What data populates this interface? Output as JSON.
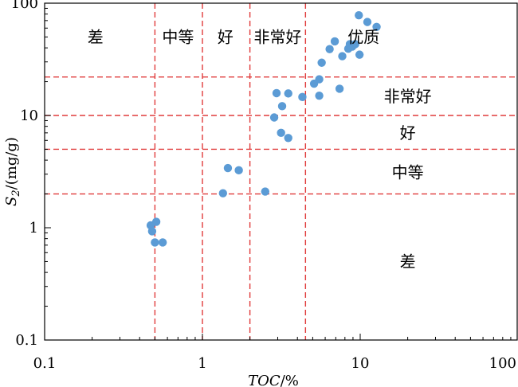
{
  "chart_data": {
    "type": "scatter",
    "title": "",
    "x_scale": "log",
    "y_scale": "log",
    "xlim": [
      0.1,
      100
    ],
    "ylim": [
      0.1,
      100
    ],
    "x_ticks": [
      {
        "value": 0.1,
        "label": "0.1"
      },
      {
        "value": 1,
        "label": "1"
      },
      {
        "value": 10,
        "label": "10"
      },
      {
        "value": 100,
        "label": "100"
      }
    ],
    "y_ticks": [
      {
        "value": 0.1,
        "label": "0.1"
      },
      {
        "value": 1,
        "label": "1"
      },
      {
        "value": 10,
        "label": "10"
      },
      {
        "value": 100,
        "label": "100"
      }
    ],
    "xlabel": {
      "main": "TOC",
      "unit": "/%"
    },
    "ylabel": {
      "main": "S",
      "sub": "2",
      "unit": "/(mg/g)"
    },
    "grid": false,
    "marker_color": "#5b9bd5",
    "threshold_color": "#e03b3b",
    "vertical_thresholds": [
      0.5,
      1.0,
      2.0,
      4.5
    ],
    "horizontal_thresholds": [
      2,
      5,
      10,
      22
    ],
    "x_region_labels": [
      {
        "text": "差",
        "x": 0.21,
        "y": 50
      },
      {
        "text": "中等",
        "x": 0.7,
        "y": 50
      },
      {
        "text": "好",
        "x": 1.4,
        "y": 50
      },
      {
        "text": "非常好",
        "x": 3.0,
        "y": 50
      },
      {
        "text": "优质",
        "x": 10.5,
        "y": 50
      }
    ],
    "y_region_labels": [
      {
        "text": "非常好",
        "x": 20,
        "y": 14.8
      },
      {
        "text": "好",
        "x": 20,
        "y": 7.0
      },
      {
        "text": "中等",
        "x": 20,
        "y": 3.1
      },
      {
        "text": "差",
        "x": 20,
        "y": 0.5
      }
    ],
    "points": [
      {
        "x": 0.47,
        "y": 1.05
      },
      {
        "x": 0.51,
        "y": 1.13
      },
      {
        "x": 0.48,
        "y": 0.93
      },
      {
        "x": 0.5,
        "y": 0.74
      },
      {
        "x": 0.56,
        "y": 0.74
      },
      {
        "x": 1.35,
        "y": 2.03
      },
      {
        "x": 1.45,
        "y": 3.4
      },
      {
        "x": 1.7,
        "y": 3.25
      },
      {
        "x": 2.5,
        "y": 2.1
      },
      {
        "x": 2.85,
        "y": 9.6
      },
      {
        "x": 2.95,
        "y": 15.8
      },
      {
        "x": 3.15,
        "y": 7.0
      },
      {
        "x": 3.2,
        "y": 12.1
      },
      {
        "x": 3.5,
        "y": 6.3
      },
      {
        "x": 3.5,
        "y": 15.7
      },
      {
        "x": 4.3,
        "y": 14.6
      },
      {
        "x": 5.1,
        "y": 19.2
      },
      {
        "x": 5.5,
        "y": 15.0
      },
      {
        "x": 5.5,
        "y": 21.0
      },
      {
        "x": 5.7,
        "y": 29.5
      },
      {
        "x": 6.4,
        "y": 39.0
      },
      {
        "x": 6.9,
        "y": 45.7
      },
      {
        "x": 7.4,
        "y": 17.3
      },
      {
        "x": 7.7,
        "y": 33.7
      },
      {
        "x": 8.4,
        "y": 39.3
      },
      {
        "x": 8.6,
        "y": 43.2
      },
      {
        "x": 8.9,
        "y": 41.0
      },
      {
        "x": 9.3,
        "y": 43.2
      },
      {
        "x": 9.9,
        "y": 34.8
      },
      {
        "x": 9.8,
        "y": 78.0
      },
      {
        "x": 11.1,
        "y": 68.0
      },
      {
        "x": 12.7,
        "y": 61.5
      }
    ]
  }
}
